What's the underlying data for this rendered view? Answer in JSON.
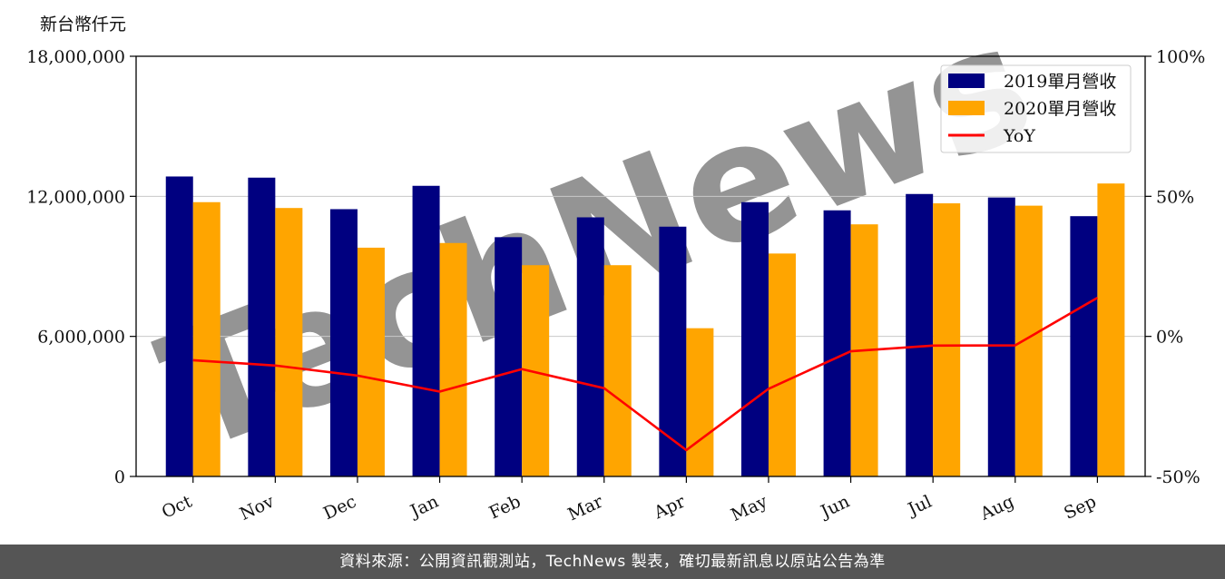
{
  "chart_data": {
    "type": "bar",
    "unit_label": "新台幣仟元",
    "categories": [
      "Oct",
      "Nov",
      "Dec",
      "Jan",
      "Feb",
      "Mar",
      "Apr",
      "May",
      "Jun",
      "Jul",
      "Aug",
      "Sep"
    ],
    "series": [
      {
        "name": "2019單月營收",
        "type": "bar",
        "color": "#000080",
        "values": [
          12850000,
          12800000,
          11450000,
          12450000,
          10250000,
          11100000,
          10700000,
          11750000,
          11400000,
          12100000,
          11950000,
          11150000
        ]
      },
      {
        "name": "2020單月營收",
        "type": "bar",
        "color": "#FFA500",
        "values": [
          11750000,
          11500000,
          9800000,
          10000000,
          9050000,
          9050000,
          6350000,
          9550000,
          10800000,
          11700000,
          11600000,
          12550000
        ]
      },
      {
        "name": "YoY",
        "type": "line",
        "axis": "right",
        "color": "#FF0000",
        "values": [
          -8.5,
          -10.4,
          -14.0,
          -19.7,
          -11.7,
          -18.5,
          -40.6,
          -18.7,
          -5.3,
          -3.3,
          -3.2,
          13.8
        ]
      }
    ],
    "y_left": {
      "ylim": [
        0,
        18000000
      ],
      "ticks": [
        "0",
        "6,000,000",
        "12,000,000",
        "18,000,000"
      ]
    },
    "y_right": {
      "ylim": [
        -50,
        100
      ],
      "ticks": [
        "-50%",
        "0%",
        "50%",
        "100%"
      ]
    },
    "grid": "horizontal",
    "legend_position": "top-right",
    "watermark": "TechNews"
  },
  "footer": {
    "text": "資料來源：公開資訊觀測站，TechNews 製表，確切最新訊息以原站公告為準"
  }
}
